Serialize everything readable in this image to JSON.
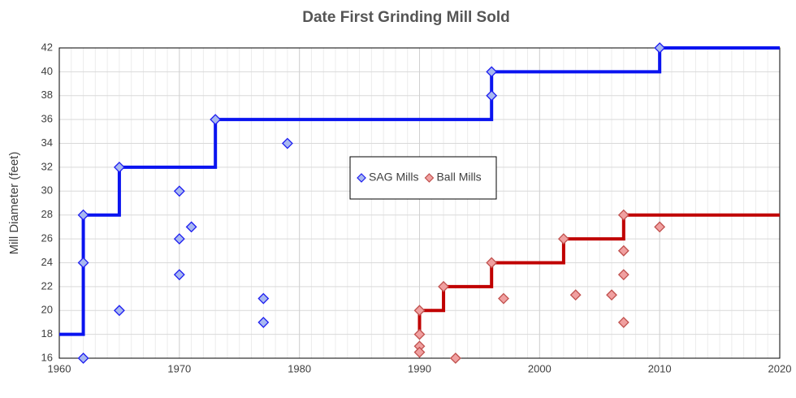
{
  "chart_data": {
    "type": "scatter",
    "title": "Date First Grinding Mill Sold",
    "y_label": "Mill Diameter (feet)",
    "xlim": [
      1960,
      2020
    ],
    "xticks": [
      1960,
      1970,
      1980,
      1990,
      2000,
      2010,
      2020
    ],
    "ylim": [
      16,
      42
    ],
    "yticks": [
      16,
      18,
      20,
      22,
      24,
      26,
      28,
      30,
      32,
      34,
      36,
      38,
      40,
      42
    ],
    "grid": true,
    "x_minor_grid": 1,
    "legend_position": "center",
    "series": [
      {
        "name": "SAG Mills",
        "color": "#1c1cf0",
        "fill": "#a8b8f0",
        "x": [
          1962,
          1962,
          1962,
          1965,
          1965,
          1970,
          1970,
          1970,
          1971,
          1973,
          1977,
          1977,
          1979,
          1996,
          1996,
          2010
        ],
        "values": [
          16,
          24,
          28,
          20,
          32,
          30,
          26,
          23,
          27,
          36,
          21,
          19,
          34,
          40,
          38,
          42
        ]
      },
      {
        "name": "Ball Mills",
        "color": "#c0504d",
        "fill": "#f0a0a0",
        "x": [
          1990,
          1990,
          1990,
          1990,
          1992,
          1993,
          1996,
          1997,
          2002,
          2003,
          2006,
          2007,
          2007,
          2007,
          2007,
          2010
        ],
        "values": [
          20,
          18,
          17,
          16.5,
          22,
          16,
          24,
          21,
          26,
          21.3,
          21.3,
          28,
          25,
          23,
          19,
          27
        ]
      }
    ],
    "step_lines": [
      {
        "color": "#0a14f0",
        "x": [
          1960,
          1962,
          1962,
          1965,
          1965,
          1973,
          1973,
          1996,
          1996,
          2010,
          2010,
          2020
        ],
        "values": [
          18,
          18,
          28,
          28,
          32,
          32,
          36,
          36,
          40,
          40,
          42,
          42
        ]
      },
      {
        "color": "#c00000",
        "x": [
          1990,
          1990,
          1992,
          1992,
          1996,
          1996,
          2002,
          2002,
          2007,
          2007,
          2020
        ],
        "values": [
          18,
          20,
          20,
          22,
          22,
          24,
          24,
          26,
          26,
          28,
          28
        ]
      }
    ]
  }
}
